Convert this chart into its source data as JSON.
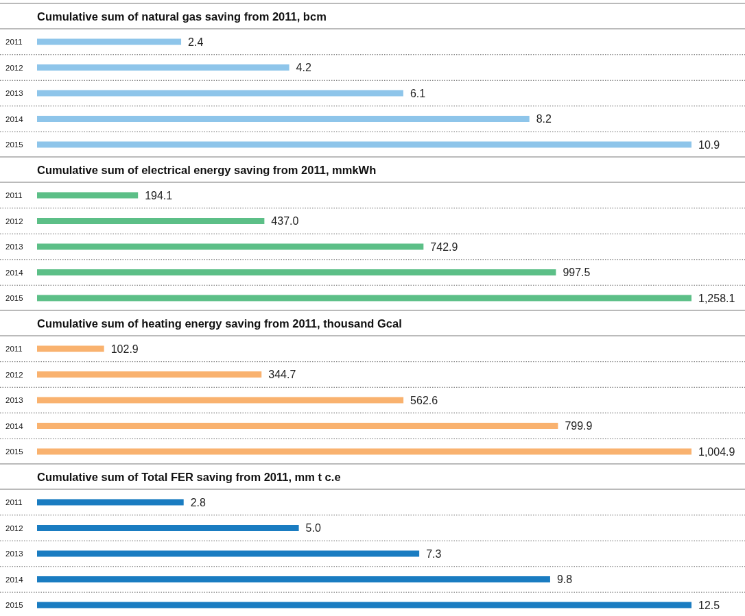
{
  "chart_data": [
    {
      "type": "bar",
      "orientation": "horizontal",
      "title": "Cumulative sum of natural gas saving from 2011, bcm",
      "categories": [
        "2011",
        "2012",
        "2013",
        "2014",
        "2015"
      ],
      "values": [
        2.4,
        4.2,
        6.1,
        8.2,
        10.9
      ],
      "value_labels": [
        "2.4",
        "4.2",
        "6.1",
        "8.2",
        "10.9"
      ],
      "color": "#8ec5ea",
      "tick_labels": "y",
      "grid": "y"
    },
    {
      "type": "bar",
      "orientation": "horizontal",
      "title": "Cumulative sum of electrical energy saving from 2011, mmkWh",
      "categories": [
        "2011",
        "2012",
        "2013",
        "2014",
        "2015"
      ],
      "values": [
        194.1,
        437.0,
        742.9,
        997.5,
        1258.1
      ],
      "value_labels": [
        "194.1",
        "437.0",
        "742.9",
        "997.5",
        "1,258.1"
      ],
      "color": "#5cbf87",
      "tick_labels": "y",
      "grid": "y"
    },
    {
      "type": "bar",
      "orientation": "horizontal",
      "title": "Cumulative sum of heating energy saving from 2011, thousand Gcal",
      "categories": [
        "2011",
        "2012",
        "2013",
        "2014",
        "2015"
      ],
      "values": [
        102.9,
        344.7,
        562.6,
        799.9,
        1004.9
      ],
      "value_labels": [
        "102.9",
        "344.7",
        "562.6",
        "799.9",
        "1,004.9"
      ],
      "color": "#f9b26f",
      "tick_labels": "y",
      "grid": "y"
    },
    {
      "type": "bar",
      "orientation": "horizontal",
      "title": "Cumulative sum of Total FER saving from 2011, mm t c.e",
      "categories": [
        "2011",
        "2012",
        "2013",
        "2014",
        "2015"
      ],
      "values": [
        2.8,
        5.0,
        7.3,
        9.8,
        12.5
      ],
      "value_labels": [
        "2.8",
        "5.0",
        "7.3",
        "9.8",
        "12.5"
      ],
      "color": "#1a7cc1",
      "tick_labels": "y",
      "grid": "y"
    }
  ]
}
